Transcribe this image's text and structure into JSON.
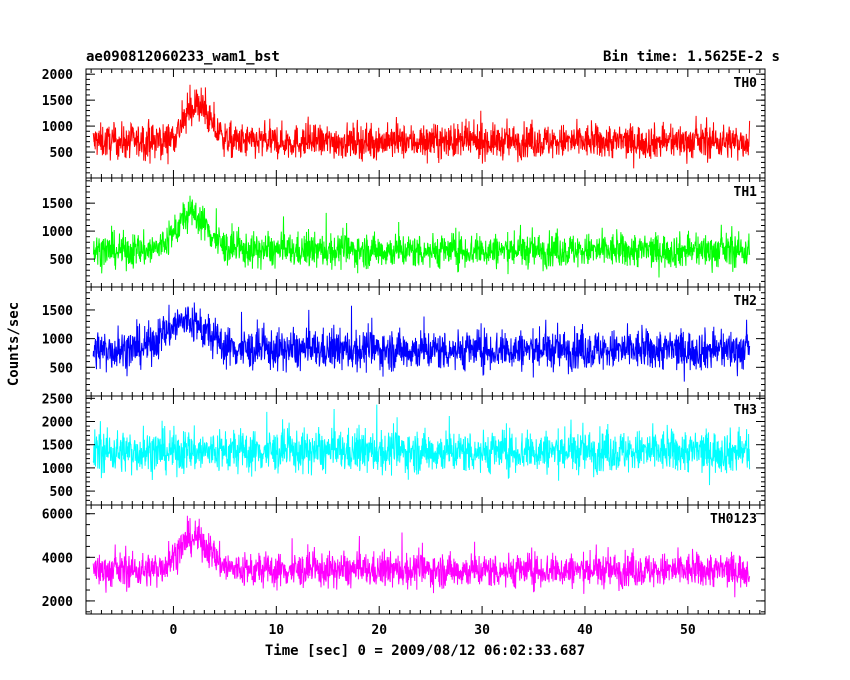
{
  "chart_data": {
    "type": "line",
    "title": "ae090812060233_wam1_bst",
    "bin_time_label": "Bin time: 1.5625E-2 s",
    "xlabel": "Time [sec] 0 = 2009/08/12 06:02:33.687",
    "ylabel": "Counts/sec",
    "xlim": [
      -8.5,
      57.5
    ],
    "x_ticks": [
      0,
      10,
      20,
      30,
      40,
      50
    ],
    "x_data_range": [
      -7.8,
      56.0
    ],
    "grid": false,
    "legend": "none",
    "panels": [
      {
        "name": "TH0",
        "color": "#ff0000",
        "ylim": [
          0,
          2100
        ],
        "y_ticks": [
          500,
          1000,
          1500,
          2000
        ],
        "baseline": 700,
        "spread": 300,
        "peak": [
          {
            "x": 2.3,
            "amp": 700,
            "width": 1.2
          }
        ]
      },
      {
        "name": "TH1",
        "color": "#00ff00",
        "ylim": [
          0,
          1950
        ],
        "y_ticks": [
          500,
          1000,
          1500
        ],
        "baseline": 650,
        "spread": 280,
        "peak": [
          {
            "x": 1.8,
            "amp": 650,
            "width": 1.5
          }
        ]
      },
      {
        "name": "TH2",
        "color": "#0000ff",
        "ylim": [
          0,
          1900
        ],
        "y_ticks": [
          500,
          1000,
          1500
        ],
        "baseline": 800,
        "spread": 320,
        "peak": [
          {
            "x": 1.2,
            "amp": 500,
            "width": 2.0
          }
        ]
      },
      {
        "name": "TH3",
        "color": "#00ffff",
        "ylim": [
          200,
          2550
        ],
        "y_ticks": [
          500,
          1000,
          1500,
          2000,
          2500
        ],
        "baseline": 1350,
        "spread": 420,
        "peak": []
      },
      {
        "name": "TH0123",
        "color": "#ff00ff",
        "ylim": [
          1400,
          6400
        ],
        "y_ticks": [
          2000,
          4000,
          6000
        ],
        "baseline": 3400,
        "spread": 720,
        "peak": [
          {
            "x": 2.0,
            "amp": 1500,
            "width": 1.5
          }
        ]
      }
    ]
  }
}
